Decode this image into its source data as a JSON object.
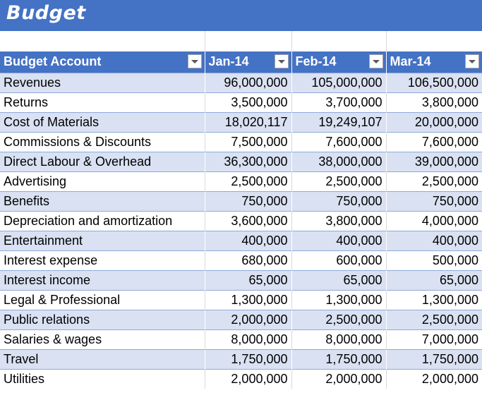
{
  "sheet": {
    "title": "Budget"
  },
  "table": {
    "headers": [
      "Budget Account",
      "Jan-14",
      "Feb-14",
      "Mar-14"
    ],
    "rows": [
      [
        "Revenues",
        "96,000,000",
        "105,000,000",
        "106,500,000"
      ],
      [
        "Returns",
        "3,500,000",
        "3,700,000",
        "3,800,000"
      ],
      [
        "Cost of Materials",
        "18,020,117",
        "19,249,107",
        "20,000,000"
      ],
      [
        "Commissions & Discounts",
        "7,500,000",
        "7,600,000",
        "7,600,000"
      ],
      [
        "Direct Labour & Overhead",
        "36,300,000",
        "38,000,000",
        "39,000,000"
      ],
      [
        "Advertising",
        "2,500,000",
        "2,500,000",
        "2,500,000"
      ],
      [
        "Benefits",
        "750,000",
        "750,000",
        "750,000"
      ],
      [
        "Depreciation and amortization",
        "3,600,000",
        "3,800,000",
        "4,000,000"
      ],
      [
        "Entertainment",
        "400,000",
        "400,000",
        "400,000"
      ],
      [
        "Interest expense",
        "680,000",
        "600,000",
        "500,000"
      ],
      [
        "Interest income",
        "65,000",
        "65,000",
        "65,000"
      ],
      [
        "Legal & Professional",
        "1,300,000",
        "1,300,000",
        "1,300,000"
      ],
      [
        "Public relations",
        "2,000,000",
        "2,500,000",
        "2,500,000"
      ],
      [
        "Salaries & wages",
        "8,000,000",
        "8,000,000",
        "7,000,000"
      ],
      [
        "Travel",
        "1,750,000",
        "1,750,000",
        "1,750,000"
      ],
      [
        "Utilities",
        "2,000,000",
        "2,000,000",
        "2,000,000"
      ]
    ]
  },
  "colors": {
    "header_bg": "#4472c4",
    "band_bg": "#d9e1f2"
  },
  "icons": {
    "filter": "filter-dropdown-icon"
  }
}
